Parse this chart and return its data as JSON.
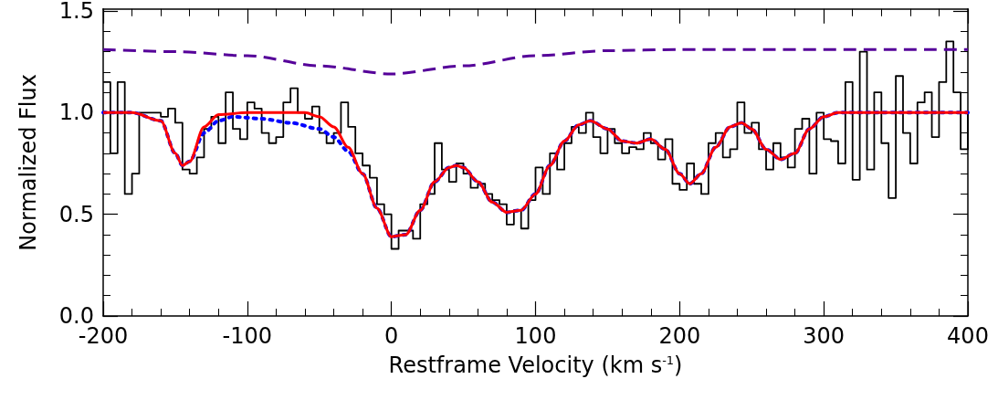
{
  "chart_data": {
    "type": "line",
    "xlabel": "Restframe Velocity (km s$^{-1}$)",
    "ylabel": "Normalized Flux",
    "xlim": [
      -200,
      400
    ],
    "xticks": [
      -200,
      -100,
      0,
      100,
      200,
      300,
      400
    ],
    "ylim": [
      0,
      1.51
    ],
    "yticks": [
      {
        "value": 0,
        "label": "0.0"
      },
      {
        "value": 0.5,
        "label": "0.5"
      },
      {
        "value": 1,
        "label": "1.0"
      },
      {
        "value": 1.5,
        "label": "1.5"
      }
    ],
    "grid": false,
    "marker": "none",
    "series": [
      {
        "type": "step",
        "color": "#000000",
        "line_style": "solid",
        "x": [
          -200,
          -195,
          -190,
          -185,
          -180,
          -175,
          -170,
          -165,
          -160,
          -155,
          -150,
          -145,
          -140,
          -135,
          -130,
          -125,
          -120,
          -115,
          -110,
          -105,
          -100,
          -95,
          -90,
          -85,
          -80,
          -75,
          -70,
          -65,
          -60,
          -55,
          -50,
          -45,
          -40,
          -35,
          -30,
          -25,
          -20,
          -15,
          -10,
          -5,
          0,
          5,
          10,
          15,
          20,
          25,
          30,
          35,
          40,
          45,
          50,
          55,
          60,
          65,
          70,
          75,
          80,
          85,
          90,
          95,
          100,
          105,
          110,
          115,
          120,
          125,
          130,
          135,
          140,
          145,
          150,
          155,
          160,
          165,
          170,
          175,
          180,
          185,
          190,
          195,
          200,
          205,
          210,
          215,
          220,
          225,
          230,
          235,
          240,
          245,
          250,
          255,
          260,
          265,
          270,
          275,
          280,
          285,
          290,
          295,
          300,
          305,
          310,
          315,
          320,
          325,
          330,
          335,
          340,
          345,
          350,
          355,
          360,
          365,
          370,
          375,
          380,
          385,
          390,
          395,
          400
        ],
        "values": [
          1.15,
          0.8,
          1.15,
          0.6,
          0.7,
          1.0,
          1.0,
          1.0,
          0.98,
          1.02,
          0.95,
          0.72,
          0.7,
          0.78,
          0.92,
          0.98,
          0.85,
          1.1,
          0.92,
          0.87,
          1.05,
          1.02,
          0.9,
          0.85,
          0.88,
          1.05,
          1.12,
          1.0,
          0.97,
          1.03,
          0.9,
          0.85,
          0.9,
          1.05,
          0.93,
          0.8,
          0.74,
          0.68,
          0.55,
          0.5,
          0.33,
          0.42,
          0.42,
          0.38,
          0.55,
          0.6,
          0.85,
          0.72,
          0.66,
          0.75,
          0.7,
          0.63,
          0.65,
          0.6,
          0.57,
          0.55,
          0.45,
          0.52,
          0.43,
          0.57,
          0.73,
          0.6,
          0.8,
          0.72,
          0.85,
          0.93,
          0.9,
          1.0,
          0.88,
          0.8,
          0.92,
          0.85,
          0.8,
          0.83,
          0.82,
          0.9,
          0.85,
          0.77,
          0.87,
          0.65,
          0.62,
          0.75,
          0.65,
          0.6,
          0.85,
          0.9,
          0.78,
          0.82,
          1.05,
          0.9,
          0.95,
          0.82,
          0.72,
          0.85,
          0.78,
          0.73,
          0.92,
          0.97,
          0.7,
          1.0,
          0.87,
          0.86,
          0.75,
          1.15,
          0.67,
          1.3,
          0.72,
          1.1,
          0.85,
          0.58,
          1.18,
          0.9,
          0.75,
          1.05,
          1.1,
          0.88,
          1.15,
          1.35,
          1.1,
          0.82,
          1.0
        ]
      },
      {
        "type": "line",
        "color": "#550099",
        "line_style": "dashed",
        "x": [
          -200,
          -150,
          -100,
          -50,
          0,
          50,
          100,
          150,
          200,
          400
        ],
        "values": [
          1.31,
          1.3,
          1.28,
          1.23,
          1.19,
          1.23,
          1.28,
          1.305,
          1.31,
          1.31
        ]
      },
      {
        "type": "line",
        "color": "#0000ff",
        "line_style": "dotted",
        "x": [
          -200,
          -180,
          -160,
          -150,
          -145,
          -140,
          -130,
          -120,
          -110,
          -90,
          -70,
          -50,
          -40,
          -30,
          -20,
          -10,
          0,
          10,
          20,
          30,
          40,
          45,
          50,
          60,
          70,
          80,
          90,
          100,
          110,
          120,
          130,
          138,
          150,
          160,
          170,
          180,
          190,
          200,
          207,
          215,
          225,
          235,
          243,
          250,
          260,
          270,
          280,
          290,
          300,
          310,
          400
        ],
        "values": [
          1,
          1,
          0.96,
          0.8,
          0.74,
          0.76,
          0.9,
          0.96,
          0.98,
          0.97,
          0.95,
          0.92,
          0.88,
          0.81,
          0.7,
          0.53,
          0.39,
          0.4,
          0.52,
          0.66,
          0.73,
          0.74,
          0.73,
          0.66,
          0.56,
          0.51,
          0.52,
          0.6,
          0.74,
          0.86,
          0.94,
          0.96,
          0.92,
          0.86,
          0.85,
          0.87,
          0.82,
          0.7,
          0.65,
          0.7,
          0.83,
          0.93,
          0.95,
          0.92,
          0.82,
          0.77,
          0.8,
          0.92,
          0.98,
          1,
          1
        ]
      },
      {
        "type": "line",
        "color": "#ff0000",
        "line_style": "solid",
        "x": [
          -200,
          -180,
          -160,
          -150,
          -145,
          -140,
          -130,
          -120,
          -100,
          -60,
          -50,
          -40,
          -30,
          -20,
          -10,
          0,
          10,
          20,
          30,
          40,
          45,
          50,
          60,
          70,
          80,
          90,
          100,
          110,
          120,
          130,
          138,
          150,
          160,
          170,
          180,
          190,
          200,
          207,
          215,
          225,
          235,
          243,
          250,
          260,
          270,
          280,
          290,
          300,
          310,
          400
        ],
        "values": [
          1,
          1,
          0.96,
          0.8,
          0.74,
          0.76,
          0.93,
          0.99,
          1,
          1,
          0.98,
          0.93,
          0.83,
          0.7,
          0.53,
          0.39,
          0.4,
          0.52,
          0.66,
          0.73,
          0.74,
          0.73,
          0.66,
          0.56,
          0.51,
          0.52,
          0.6,
          0.74,
          0.86,
          0.94,
          0.96,
          0.92,
          0.86,
          0.85,
          0.87,
          0.82,
          0.7,
          0.65,
          0.7,
          0.83,
          0.93,
          0.95,
          0.92,
          0.82,
          0.77,
          0.8,
          0.92,
          0.98,
          1,
          1
        ]
      }
    ]
  }
}
